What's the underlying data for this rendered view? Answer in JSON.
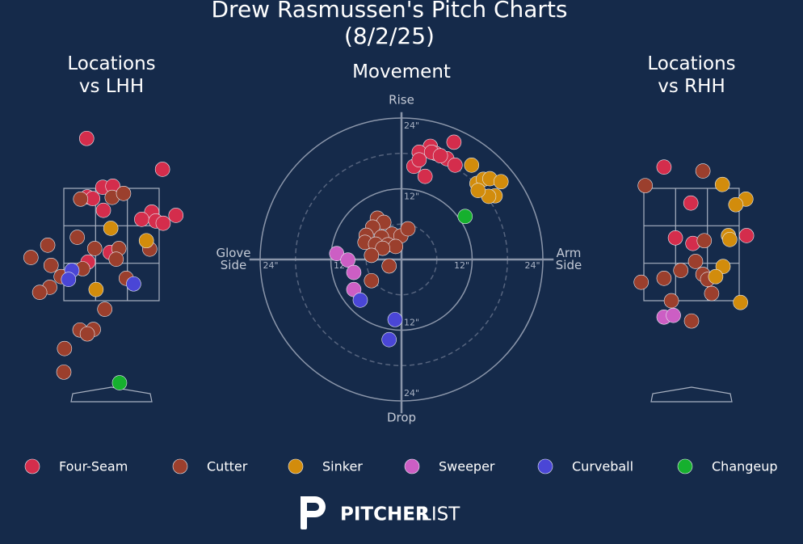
{
  "title": "Drew Rasmussen's Pitch Charts (8/2/25)",
  "brand": {
    "bold": "PITCHER",
    "light": "LIST"
  },
  "chart_data": [
    {
      "type": "scatter",
      "title": "Locations\nvs LHH",
      "xlim": [
        -1.3,
        1.3
      ],
      "ylim": [
        -0.35,
        4.7
      ],
      "series": [
        {
          "name": "Four-Seam",
          "color": "#d42d4c",
          "x": [
            -0.37,
            0.76,
            -0.13,
            0.02,
            -0.36,
            -0.28,
            -0.12,
            0.6,
            0.96,
            0.45,
            0.66,
            0.77,
            -0.02,
            -0.35
          ],
          "y": [
            4.38,
            3.83,
            3.51,
            3.53,
            3.34,
            3.31,
            3.1,
            3.07,
            3.01,
            2.94,
            2.91,
            2.87,
            2.35,
            2.18
          ]
        },
        {
          "name": "Cutter",
          "color": "#9b3f2d",
          "x": [
            -0.46,
            0.01,
            0.18,
            -0.95,
            -1.2,
            -0.51,
            -0.25,
            0.11,
            0.57,
            -0.9,
            0.07,
            -0.43,
            -0.75,
            0.22,
            -0.92,
            -1.07,
            -0.1,
            -0.47,
            -0.27,
            -0.36,
            -0.7,
            -0.71
          ],
          "y": [
            3.3,
            3.33,
            3.4,
            2.48,
            2.26,
            2.62,
            2.42,
            2.42,
            2.41,
            2.12,
            2.23,
            2.06,
            1.92,
            1.89,
            1.73,
            1.64,
            1.34,
            0.97,
            0.98,
            0.9,
            0.64,
            0.22
          ]
        },
        {
          "name": "Sinker",
          "color": "#d28c0c",
          "x": [
            -0.01,
            0.52,
            -0.23
          ],
          "y": [
            2.78,
            2.56,
            1.69
          ]
        },
        {
          "name": "Sweeper",
          "color": "#cc5ec4",
          "x": [],
          "y": []
        },
        {
          "name": "Curveball",
          "color": "#4a46d6",
          "x": [
            -0.59,
            -0.64,
            0.33
          ],
          "y": [
            2.03,
            1.87,
            1.79
          ]
        },
        {
          "name": "Changeup",
          "color": "#16b02e",
          "x": [
            0.12
          ],
          "y": [
            0.03
          ]
        }
      ]
    },
    {
      "type": "movement",
      "title": "Movement",
      "xlim": [
        -24,
        24
      ],
      "ylim": [
        -24,
        24
      ],
      "rticks": [
        {
          "value": 12,
          "label": "12\""
        },
        {
          "value": 24,
          "label": "24\""
        }
      ],
      "rminor": [
        6,
        18
      ],
      "axis_labels": {
        "top": "Rise",
        "bottom": "Drop",
        "left": "Glove\nSide",
        "right": "Arm\nSide"
      },
      "series": [
        {
          "name": "Four-Seam",
          "color": "#d42d4c",
          "x": [
            4.9,
            8.9,
            3.0,
            5.8,
            7.7,
            2.1,
            9.1,
            4.0,
            5.1,
            3.0,
            6.6
          ],
          "y": [
            19.2,
            19.9,
            18.2,
            18.0,
            17.1,
            15.8,
            16.0,
            14.1,
            18.2,
            16.9,
            17.6
          ]
        },
        {
          "name": "Cutter",
          "color": "#9b3f2d",
          "x": [
            -4.1,
            -3.0,
            -4.9,
            -1.6,
            -6.0,
            -3.4,
            -0.1,
            -6.2,
            -4.4,
            -2.3,
            -1.0,
            -3.2,
            -5.1,
            -2.1,
            -5.1,
            1.1
          ],
          "y": [
            7.0,
            6.3,
            5.5,
            4.3,
            4.1,
            3.8,
            4.0,
            2.9,
            2.6,
            2.5,
            2.2,
            1.9,
            0.7,
            -1.1,
            -3.6,
            5.2
          ]
        },
        {
          "name": "Sinker",
          "color": "#d28c0c",
          "x": [
            11.9,
            12.8,
            13.9,
            15.0,
            16.9,
            15.9,
            14.8,
            13.0
          ],
          "y": [
            16.0,
            12.9,
            13.6,
            13.7,
            13.2,
            10.8,
            10.7,
            11.7
          ]
        },
        {
          "name": "Sweeper",
          "color": "#cc5ec4",
          "x": [
            -11.0,
            -9.1,
            -8.1,
            -8.1
          ],
          "y": [
            1.0,
            -0.1,
            -2.2,
            -5.1
          ]
        },
        {
          "name": "Curveball",
          "color": "#4a46d6",
          "x": [
            -7.0,
            -1.1,
            -2.1
          ],
          "y": [
            -6.9,
            -10.2,
            -13.6
          ]
        },
        {
          "name": "Changeup",
          "color": "#16b02e",
          "x": [
            10.8
          ],
          "y": [
            7.3
          ]
        }
      ]
    },
    {
      "type": "scatter",
      "title": "Locations\nvs RHH",
      "xlim": [
        -1.3,
        1.3
      ],
      "ylim": [
        -0.35,
        4.7
      ],
      "series": [
        {
          "name": "Four-Seam",
          "color": "#d42d4c",
          "x": [
            -0.41,
            -0.01,
            -0.24,
            0.02,
            0.82
          ],
          "y": [
            3.87,
            3.23,
            2.61,
            2.51,
            2.65
          ]
        },
        {
          "name": "Cutter",
          "color": "#9b3f2d",
          "x": [
            -0.69,
            0.17,
            0.19,
            0.06,
            -0.16,
            -0.41,
            -0.75,
            0.17,
            0.24,
            0.3,
            -0.3,
            0.0
          ],
          "y": [
            3.54,
            3.8,
            2.56,
            2.19,
            2.03,
            1.89,
            1.82,
            1.96,
            1.87,
            1.62,
            1.49,
            1.13
          ]
        },
        {
          "name": "Sinker",
          "color": "#d28c0c",
          "x": [
            0.46,
            0.81,
            0.66,
            0.55,
            0.57,
            0.47,
            0.36,
            0.73
          ],
          "y": [
            3.56,
            3.3,
            3.2,
            2.65,
            2.58,
            2.1,
            1.92,
            1.46
          ]
        },
        {
          "name": "Sweeper",
          "color": "#cc5ec4",
          "x": [
            -0.41,
            -0.27
          ],
          "y": [
            1.2,
            1.23
          ]
        },
        {
          "name": "Curveball",
          "color": "#4a46d6",
          "x": [],
          "y": []
        },
        {
          "name": "Changeup",
          "color": "#16b02e",
          "x": [],
          "y": []
        }
      ]
    }
  ]
}
